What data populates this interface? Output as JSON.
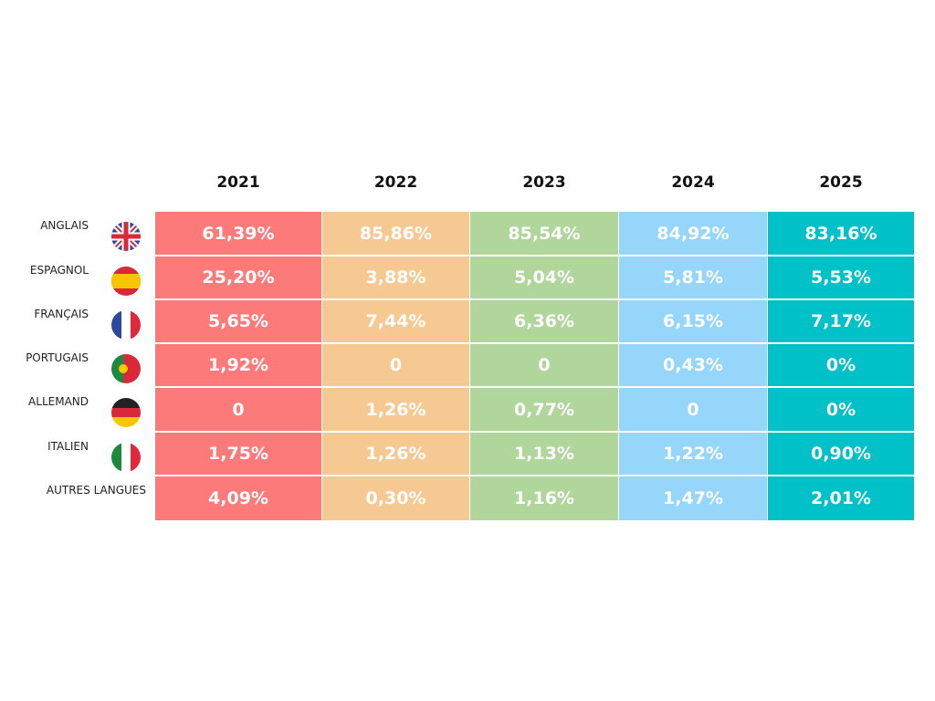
{
  "table": {
    "columns": [
      "2021",
      "2022",
      "2023",
      "2024",
      "2025"
    ],
    "rows": [
      {
        "label": "ANGLAIS",
        "cells": [
          "61,39%",
          "85,86%",
          "85,54%",
          "84,92%",
          "83,16%"
        ]
      },
      {
        "label": "ESPAGNOL",
        "cells": [
          "25,20%",
          "3,88%",
          "5,04%",
          "5,81%",
          "5,53%"
        ]
      },
      {
        "label": "FRANÇAIS",
        "cells": [
          "5,65%",
          "7,44%",
          "6,36%",
          "6,15%",
          "7,17%"
        ]
      },
      {
        "label": "PORTUGAIS",
        "cells": [
          "1,92%",
          "0",
          "0",
          "0,43%",
          "0%"
        ]
      },
      {
        "label": "ALLEMAND",
        "cells": [
          "0",
          "1,26%",
          "0,77%",
          "0",
          "0%"
        ]
      },
      {
        "label": "ITALIEN",
        "cells": [
          "1,75%",
          "1,26%",
          "1,13%",
          "1,22%",
          "0,90%"
        ]
      },
      {
        "label": "AUTRES LANGUES",
        "cells": [
          "4,09%",
          "0,30%",
          "1,16%",
          "1,47%",
          "2,01%"
        ]
      }
    ]
  }
}
